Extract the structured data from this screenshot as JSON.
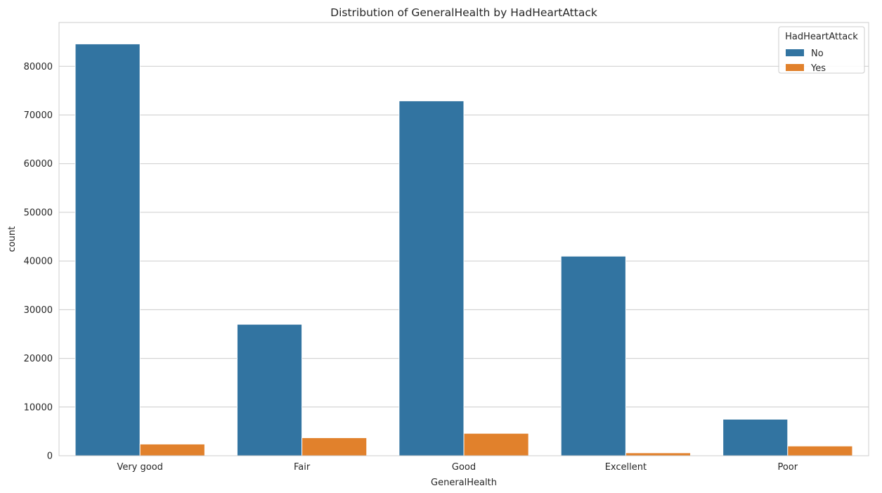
{
  "chart_data": {
    "type": "bar",
    "title": "Distribution of GeneralHealth by HadHeartAttack",
    "xlabel": "GeneralHealth",
    "ylabel": "count",
    "categories": [
      "Very good",
      "Fair",
      "Good",
      "Excellent",
      "Poor"
    ],
    "series": [
      {
        "name": "No",
        "color": "#3274a1",
        "values": [
          84600,
          27000,
          72900,
          41000,
          7500
        ]
      },
      {
        "name": "Yes",
        "color": "#e1812c",
        "values": [
          2400,
          3700,
          4600,
          600,
          2000
        ]
      }
    ],
    "ylim": [
      0,
      89000
    ],
    "yticks": [
      0,
      10000,
      20000,
      30000,
      40000,
      50000,
      60000,
      70000,
      80000
    ],
    "grid": true,
    "legend": {
      "title": "HadHeartAttack",
      "position": "top-right"
    }
  }
}
